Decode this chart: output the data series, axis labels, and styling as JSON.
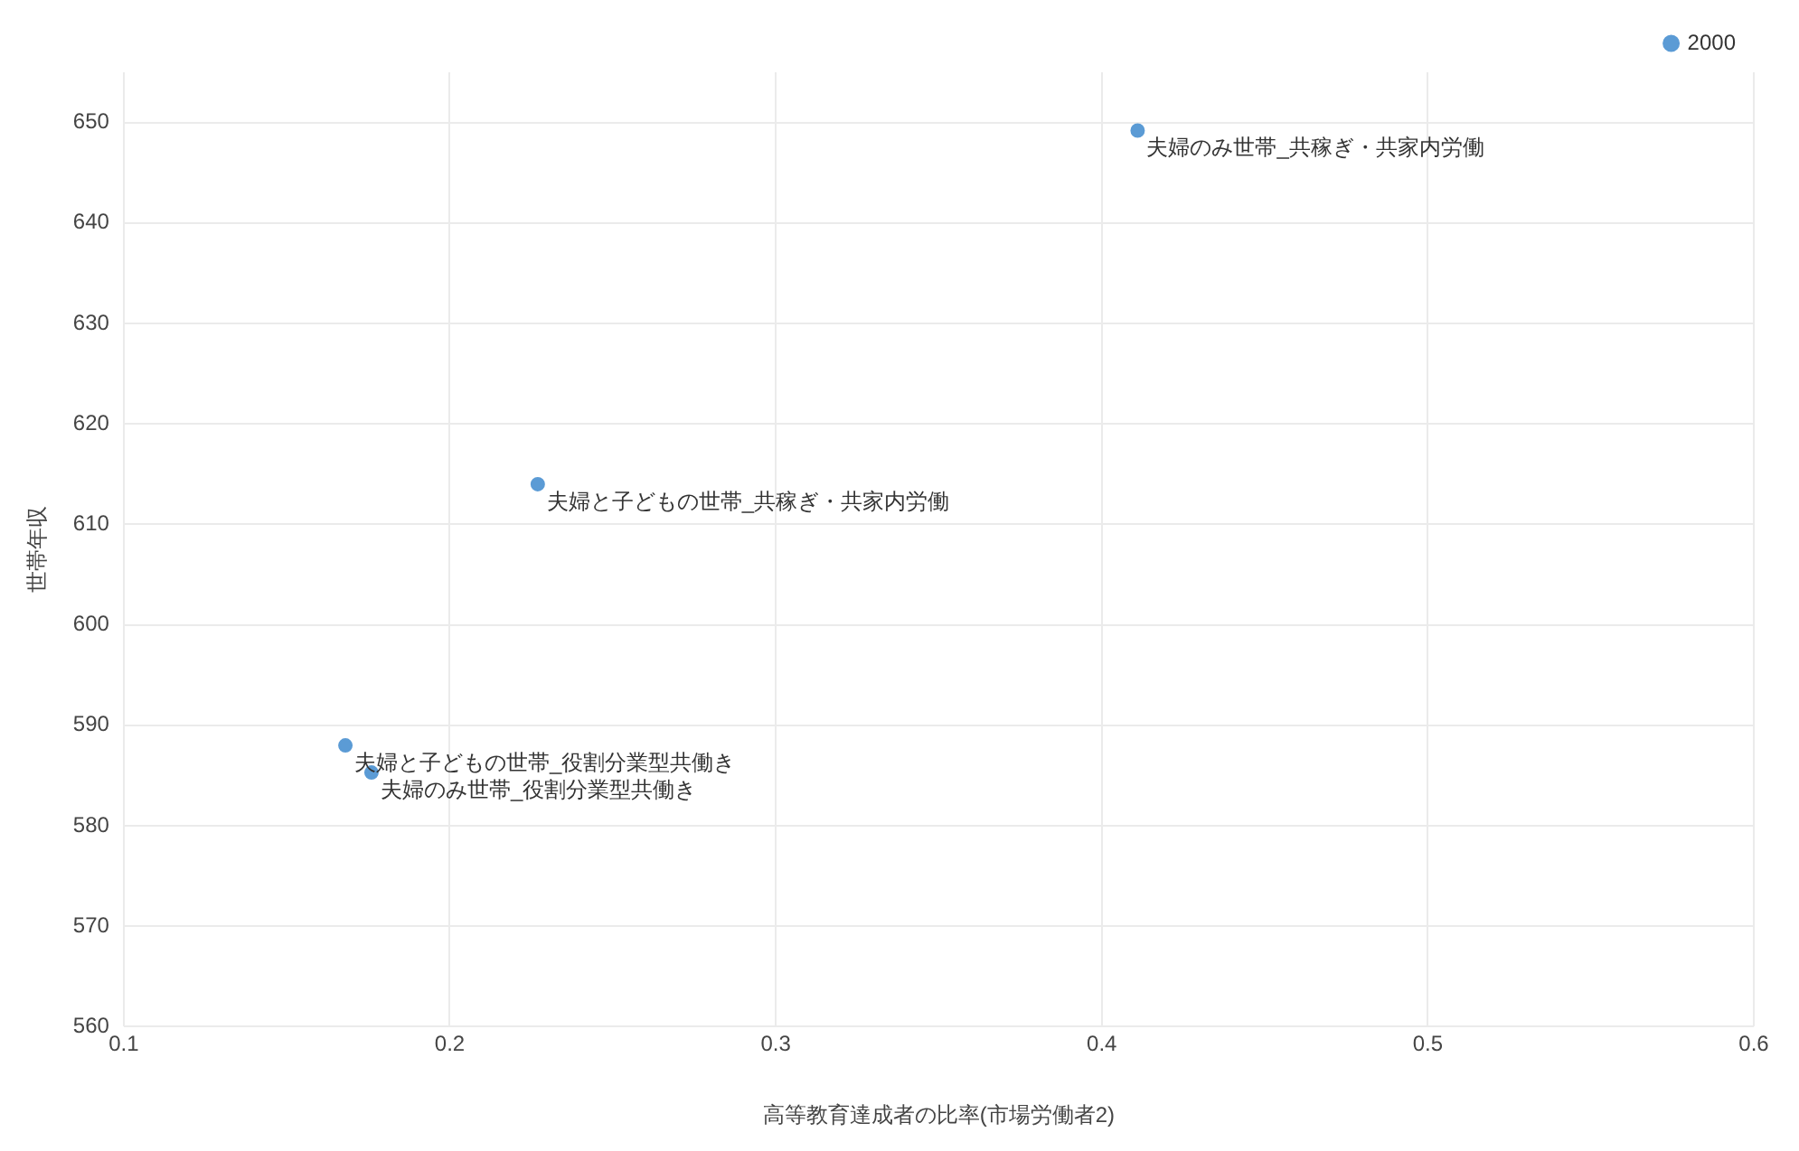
{
  "chart_data": {
    "type": "scatter",
    "xlabel": "高等教育達成者の比率(市場労働者2)",
    "ylabel": "世帯年収",
    "xlim": [
      0.1,
      0.6
    ],
    "xticks": [
      0.1,
      0.2,
      0.3,
      0.4,
      0.5,
      0.6
    ],
    "ylim": [
      560,
      655
    ],
    "yticks": [
      560,
      570,
      580,
      590,
      600,
      610,
      620,
      630,
      640,
      650
    ],
    "grid": true,
    "legend": "top right",
    "marker": "circle",
    "series": [
      {
        "name": "2000",
        "color": "#5b9bd5",
        "x": [
          0.411,
          0.227,
          0.168,
          0.176
        ],
        "values": [
          649.2,
          614,
          588,
          585.3
        ]
      }
    ],
    "annotations": [
      {
        "text": "夫婦のみ世帯_共稼ぎ・共家内労働",
        "x": 0.411,
        "y": 649.2
      },
      {
        "text": "夫婦と子どもの世帯_共稼ぎ・共家内労働",
        "x": 0.227,
        "y": 614
      },
      {
        "text": "夫婦と子どもの世帯_役割分業型共働き",
        "x": 0.168,
        "y": 588
      },
      {
        "text": "夫婦のみ世帯_役割分業型共働き",
        "x": 0.176,
        "y": 585.3
      }
    ]
  }
}
